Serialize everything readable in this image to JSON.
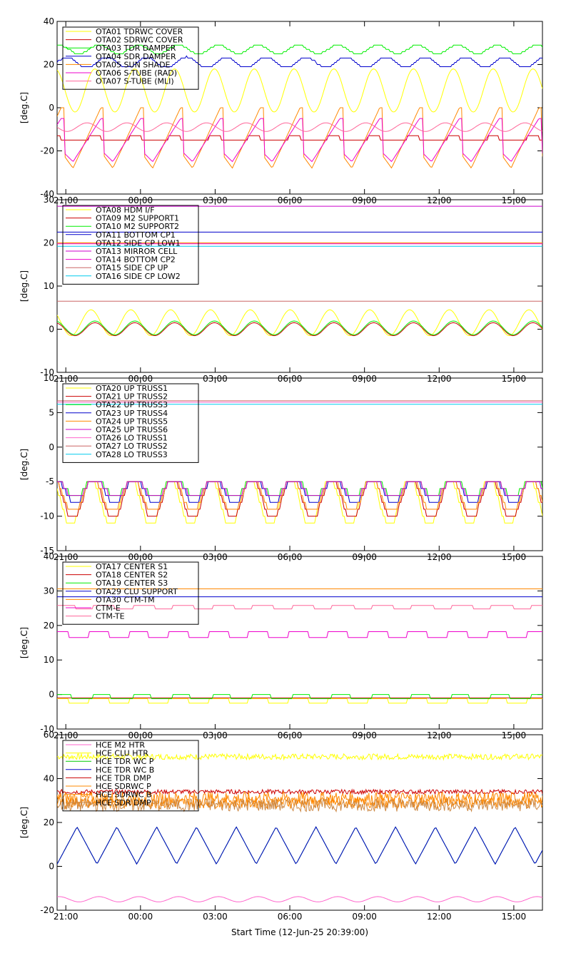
{
  "chart_data": {
    "type": "line",
    "x_title": "Start Time (12-Jun-25 20:39:00)",
    "x_ticks": [
      "21:00",
      "00:00",
      "03:00",
      "06:00",
      "09:00",
      "12:00",
      "15:00"
    ],
    "time_range_hours": [
      0,
      19.5
    ],
    "panels": [
      {
        "ylabel": "[deg.C]",
        "ylim": [
          -40,
          40
        ],
        "yticks": [
          -40,
          -20,
          0,
          20,
          40
        ],
        "series": [
          {
            "name": "OTA01 TDRWC COVER",
            "color": "#ffff00",
            "shape": "wave",
            "base": 8,
            "amp": 10,
            "period": 1.6,
            "phase": 0.3
          },
          {
            "name": "OTA02 SDRWC COVER",
            "color": "#cc0000",
            "shape": "sq",
            "lo": -15,
            "hi": -13,
            "period": 1.6,
            "phase": 0.2,
            "duty": 0.3
          },
          {
            "name": "OTA03 TDR DAMPER",
            "color": "#00ee00",
            "shape": "stepwave",
            "base": 27,
            "amp": 2,
            "period": 1.6,
            "phase": 0.2
          },
          {
            "name": "OTA04 SDR DAMPER",
            "color": "#0000cc",
            "shape": "stepwave",
            "base": 21,
            "amp": 2.5,
            "period": 1.6,
            "phase": 0.0
          },
          {
            "name": "OTA05 SUN SHADE",
            "color": "#ff8800",
            "shape": "spike",
            "lo": -28,
            "hi": 0,
            "period": 1.6,
            "phase": 0.9
          },
          {
            "name": "OTA06 S-TUBE (RAD)",
            "color": "#ee00cc",
            "shape": "spike",
            "lo": -25,
            "hi": -5,
            "period": 1.6,
            "phase": 0.9
          },
          {
            "name": "OTA07 S-TUBE (MLI)",
            "color": "#ff6699",
            "shape": "wave",
            "base": -9,
            "amp": 2,
            "period": 1.6,
            "phase": 0.5
          }
        ]
      },
      {
        "ylabel": "[deg.C]",
        "ylim": [
          -10,
          30
        ],
        "yticks": [
          -10,
          0,
          10,
          20,
          30
        ],
        "series": [
          {
            "name": "OTA08 HDM I/F",
            "color": "#ffff00",
            "shape": "wave",
            "base": 1.5,
            "amp": 3,
            "period": 1.6,
            "phase": 0.4
          },
          {
            "name": "OTA09 M2 SUPPORT1",
            "color": "#cc0000",
            "shape": "wave",
            "base": 0,
            "amp": 1.5,
            "period": 1.6,
            "phase": 0.3
          },
          {
            "name": "OTA10 M2 SUPPORT2",
            "color": "#00ee00",
            "shape": "wave",
            "base": 0.3,
            "amp": 1.6,
            "period": 1.6,
            "phase": 0.3
          },
          {
            "name": "OTA11 BOTTOM CP1",
            "color": "#0000cc",
            "shape": "flat",
            "value": 22.5
          },
          {
            "name": "OTA12 SIDE CP LOW1",
            "color": "#ff8800",
            "shape": "flat",
            "value": 20
          },
          {
            "name": "OTA13 MIRROR CELL",
            "color": "#cc00cc",
            "shape": "flat",
            "value": 28.5
          },
          {
            "name": "OTA14 BOTTOM CP2",
            "color": "#ee00cc",
            "shape": "flat",
            "value": 19.8
          },
          {
            "name": "OTA15 SIDE CP UP",
            "color": "#cc6666",
            "shape": "flat",
            "value": 6.5
          },
          {
            "name": "OTA16 SIDE CP LOW2",
            "color": "#00ccee",
            "shape": "flat",
            "value": 19.2
          }
        ]
      },
      {
        "ylabel": "[deg.C]",
        "ylim": [
          -15,
          10
        ],
        "yticks": [
          -15,
          -10,
          -5,
          0,
          5,
          10
        ],
        "series": [
          {
            "name": "OTA20 UP TRUSS1",
            "color": "#ffff00",
            "shape": "stepwave",
            "base": -8,
            "amp": 3.5,
            "period": 1.6,
            "phase": 0.4
          },
          {
            "name": "OTA21 UP TRUSS2",
            "color": "#cc0000",
            "shape": "stepwave",
            "base": -7.5,
            "amp": 3,
            "period": 1.6,
            "phase": 0.35
          },
          {
            "name": "OTA22 UP TRUSS3",
            "color": "#00ee00",
            "shape": "stepwave",
            "base": -5.8,
            "amp": 1.3,
            "period": 1.6,
            "phase": 0.3
          },
          {
            "name": "OTA23 UP TRUSS4",
            "color": "#0000cc",
            "shape": "stepwave",
            "base": -6.3,
            "amp": 1.8,
            "period": 1.6,
            "phase": 0.3
          },
          {
            "name": "OTA24 UP TRUSS5",
            "color": "#ff8800",
            "shape": "stepwave",
            "base": -7,
            "amp": 2.5,
            "period": 1.6,
            "phase": 0.35
          },
          {
            "name": "OTA25 UP TRUSS6",
            "color": "#cc00cc",
            "shape": "stepwave",
            "base": -6,
            "amp": 1.5,
            "period": 1.6,
            "phase": 0.3
          },
          {
            "name": "OTA26 LO TRUSS1",
            "color": "#ff66cc",
            "shape": "flat",
            "value": 6.5
          },
          {
            "name": "OTA27 LO TRUSS2",
            "color": "#cc6666",
            "shape": "flat",
            "value": 6.7
          },
          {
            "name": "OTA28 LO TRUSS3",
            "color": "#00ccee",
            "shape": "flat",
            "value": 6.2
          }
        ]
      },
      {
        "ylabel": "[deg.C]",
        "ylim": [
          -10,
          40
        ],
        "yticks": [
          -10,
          0,
          10,
          20,
          30,
          40
        ],
        "series": [
          {
            "name": "OTA17 CENTER S1",
            "color": "#ffff00",
            "shape": "sq",
            "lo": -2.5,
            "hi": -1.2,
            "period": 1.6,
            "phase": 0.2,
            "duty": 0.5
          },
          {
            "name": "OTA18 CENTER S2",
            "color": "#cc0000",
            "shape": "flat",
            "value": -1.0
          },
          {
            "name": "OTA19 CENTER S3",
            "color": "#00ee00",
            "shape": "sq",
            "lo": -1.2,
            "hi": 0,
            "period": 1.6,
            "phase": 0.1,
            "duty": 0.45
          },
          {
            "name": "OTA29 CLU SUPPORT",
            "color": "#0000cc",
            "shape": "flat",
            "value": 28.3
          },
          {
            "name": "OTA30 CTM-TM",
            "color": "#ff8800",
            "shape": "flat",
            "value": 30.6
          },
          {
            "name": "CTM-E",
            "color": "#ee00cc",
            "shape": "sq",
            "lo": 16.5,
            "hi": 18.2,
            "period": 1.6,
            "phase": 0.2,
            "duty": 0.5
          },
          {
            "name": "CTM-TE",
            "color": "#ff6699",
            "shape": "sq",
            "lo": 24.8,
            "hi": 25.8,
            "period": 1.6,
            "phase": 0.1,
            "duty": 0.55
          }
        ]
      },
      {
        "ylabel": "[deg.C]",
        "ylim": [
          -20,
          60
        ],
        "yticks": [
          -20,
          0,
          20,
          40,
          60
        ],
        "series": [
          {
            "name": "HCE M2 HTR",
            "color": "#ff66cc",
            "shape": "wave",
            "base": -15,
            "amp": 1.2,
            "period": 1.6,
            "phase": 0.2
          },
          {
            "name": "HCE CLU HTR",
            "color": "#ffff00",
            "shape": "noise",
            "base": 50,
            "amp": 1.3
          },
          {
            "name": "HCE TDR WC P",
            "color": "#00cc00",
            "shape": "saw",
            "lo": 1,
            "hi": 18,
            "period": 1.6,
            "phase": 0.0
          },
          {
            "name": "HCE TDR WC B",
            "color": "#0000cc",
            "shape": "saw",
            "lo": 1,
            "hi": 18,
            "period": 1.6,
            "phase": 0.0
          },
          {
            "name": "HCE TDR DMP",
            "color": "#cc0000",
            "shape": "noise",
            "base": 34,
            "amp": 1
          },
          {
            "name": "HCE SDRWC P",
            "color": "#ff8800",
            "shape": "noise",
            "base": 31,
            "amp": 3
          },
          {
            "name": "HCE SDRWC B",
            "color": "#ff8800",
            "shape": "noise",
            "base": 29,
            "amp": 2.5
          },
          {
            "name": "HCE SDR DMP",
            "color": "#cc8844",
            "shape": "noise",
            "base": 28,
            "amp": 3
          }
        ]
      }
    ]
  }
}
